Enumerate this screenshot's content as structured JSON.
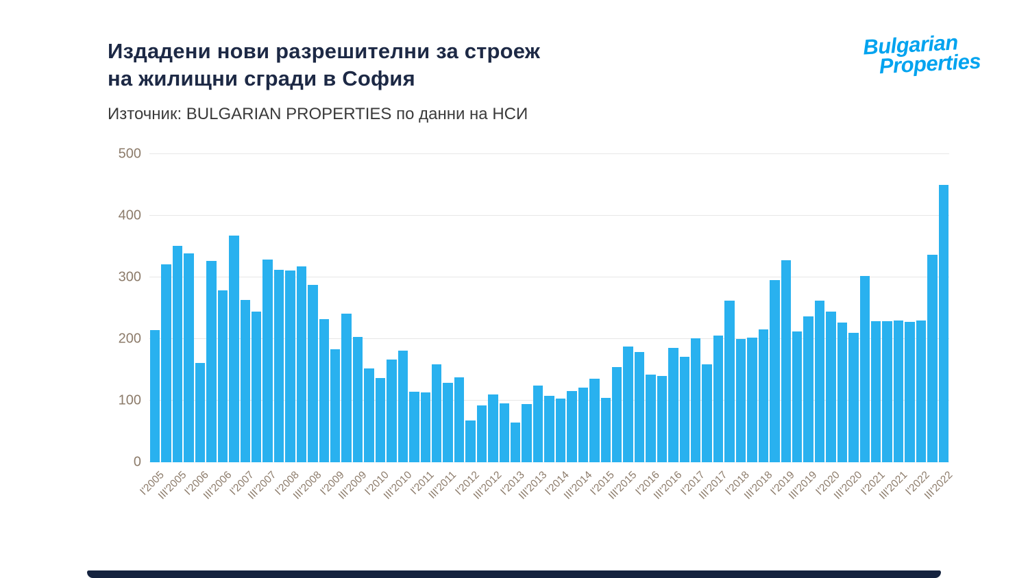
{
  "header": {
    "title_line1": "Издадени нови разрешителни за строеж",
    "title_line2": "на жилищни сгради в София",
    "source": "Източник: BULGARIAN PROPERTIES по данни на НСИ"
  },
  "logo": {
    "line1": "Bulgarian",
    "line2": "Properties",
    "color": "#00a3ef"
  },
  "chart_data": {
    "type": "bar",
    "title": "Издадени нови разрешителни за строеж на жилищни сгради в София",
    "xlabel": "",
    "ylabel": "",
    "ylim": [
      0,
      500
    ],
    "yticks": [
      0,
      100,
      200,
      300,
      400,
      500
    ],
    "grid": true,
    "legend": false,
    "bar_color": "#29b1ef",
    "axis_label_color": "#8c7b6a",
    "x_tick_every": 2,
    "categories": [
      "I'2005",
      "II'2005",
      "III'2005",
      "IV'2005",
      "I'2006",
      "II'2006",
      "III'2006",
      "IV'2006",
      "I'2007",
      "II'2007",
      "III'2007",
      "IV'2007",
      "I'2008",
      "II'2008",
      "III'2008",
      "IV'2008",
      "I'2009",
      "II'2009",
      "III'2009",
      "IV'2009",
      "I'2010",
      "II'2010",
      "III'2010",
      "IV'2010",
      "I'2011",
      "II'2011",
      "III'2011",
      "IV'2011",
      "I'2012",
      "II'2012",
      "III'2012",
      "IV'2012",
      "I'2013",
      "II'2013",
      "III'2013",
      "IV'2013",
      "I'2014",
      "II'2014",
      "III'2014",
      "IV'2014",
      "I'2015",
      "II'2015",
      "III'2015",
      "IV'2015",
      "I'2016",
      "II'2016",
      "III'2016",
      "IV'2016",
      "I'2017",
      "II'2017",
      "III'2017",
      "IV'2017",
      "I'2018",
      "II'2018",
      "III'2018",
      "IV'2018",
      "I'2019",
      "II'2019",
      "III'2019",
      "IV'2019",
      "I'2020",
      "II'2020",
      "III'2020",
      "IV'2020",
      "I'2021",
      "II'2021",
      "III'2021",
      "IV'2021",
      "I'2022",
      "II'2022",
      "III'2022"
    ],
    "values": [
      215,
      321,
      351,
      339,
      161,
      327,
      279,
      368,
      263,
      244,
      329,
      312,
      311,
      318,
      288,
      232,
      183,
      241,
      203,
      152,
      137,
      167,
      181,
      115,
      113,
      159,
      129,
      138,
      68,
      92,
      110,
      96,
      64,
      94,
      124,
      108,
      103,
      116,
      121,
      136,
      105,
      154,
      188,
      179,
      142,
      140,
      186,
      171,
      201,
      159,
      206,
      262,
      200,
      202,
      216,
      296,
      328,
      212,
      237,
      262,
      244,
      227,
      210,
      302,
      229,
      229,
      230,
      228,
      230,
      337,
      450
    ]
  },
  "footer": {
    "bar_color": "#15233f"
  }
}
